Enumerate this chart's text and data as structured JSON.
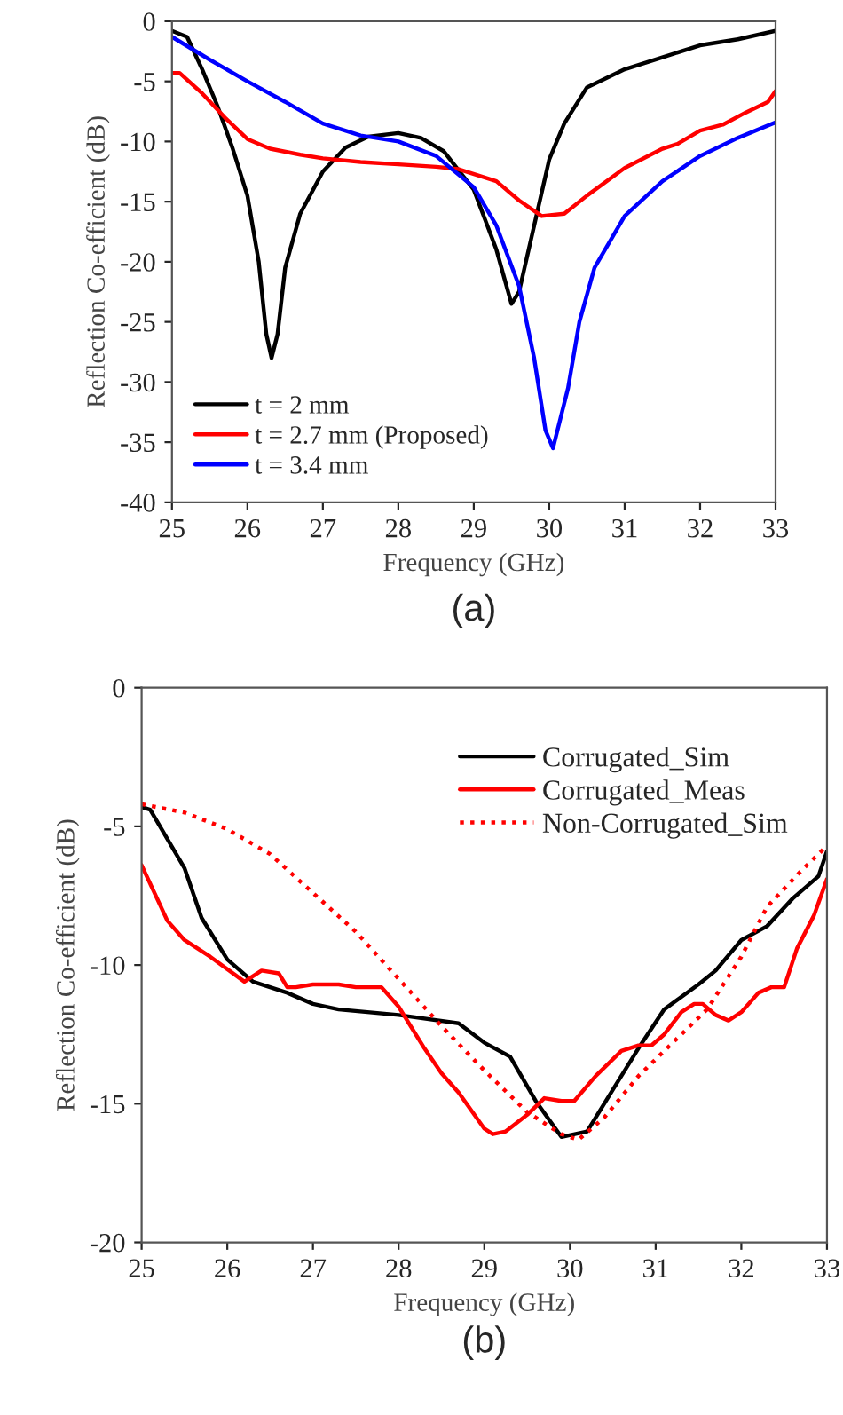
{
  "chart_data": [
    {
      "type": "line",
      "xlabel": "Frequency (GHz)",
      "ylabel": "Reflection Co-efficient (dB)",
      "annotations": [
        "(a)"
      ],
      "xlim": [
        25,
        33
      ],
      "ylim": [
        -40,
        0
      ],
      "xticks": [
        25,
        26,
        27,
        28,
        29,
        30,
        31,
        32,
        33
      ],
      "yticks": [
        -40,
        -35,
        -30,
        -25,
        -20,
        -15,
        -10,
        -5,
        0
      ],
      "grid": false,
      "legend": "bottom left",
      "series": [
        {
          "name": "t = 2 mm",
          "color": "#000000",
          "x": [
            25,
            25.2,
            25.4,
            25.6,
            25.8,
            26,
            26.15,
            26.25,
            26.32,
            26.4,
            26.5,
            26.7,
            27,
            27.3,
            27.6,
            28,
            28.3,
            28.6,
            29,
            29.3,
            29.5,
            29.6,
            29.8,
            30,
            30.2,
            30.5,
            31,
            31.5,
            32,
            32.5,
            33
          ],
          "values": [
            -0.8,
            -1.3,
            -4,
            -7,
            -10.5,
            -14.5,
            -20,
            -26,
            -28,
            -26,
            -20.5,
            -16,
            -12.5,
            -10.5,
            -9.6,
            -9.3,
            -9.7,
            -10.8,
            -14,
            -19,
            -23.5,
            -22.5,
            -17,
            -11.5,
            -8.5,
            -5.5,
            -4,
            -3,
            -2,
            -1.5,
            -0.8
          ]
        },
        {
          "name": "t = 2.7 mm (Proposed)",
          "color": "#ff0000",
          "x": [
            25,
            25.1,
            25.4,
            25.7,
            26,
            26.3,
            26.7,
            27,
            27.5,
            28,
            28.5,
            28.8,
            29.3,
            29.6,
            29.9,
            30.2,
            30.5,
            31,
            31.5,
            31.7,
            32,
            32.3,
            32.6,
            32.9,
            33
          ],
          "values": [
            -4.3,
            -4.3,
            -6,
            -8,
            -9.8,
            -10.6,
            -11.1,
            -11.4,
            -11.7,
            -11.9,
            -12.1,
            -12.3,
            -13.3,
            -14.9,
            -16.2,
            -16,
            -14.5,
            -12.2,
            -10.6,
            -10.2,
            -9.1,
            -8.6,
            -7.6,
            -6.7,
            -5.8
          ]
        },
        {
          "name": "t = 3.4 mm",
          "color": "#0000ff",
          "x": [
            25,
            25.5,
            26,
            26.5,
            27,
            27.5,
            28,
            28.5,
            29,
            29.3,
            29.6,
            29.8,
            29.95,
            30.05,
            30.15,
            30.25,
            30.4,
            30.6,
            31,
            31.5,
            32,
            32.5,
            33
          ],
          "values": [
            -1.3,
            -3.2,
            -5,
            -6.7,
            -8.5,
            -9.5,
            -10,
            -11.2,
            -13.8,
            -17,
            -22,
            -28,
            -34,
            -35.5,
            -33,
            -30.5,
            -25,
            -20.5,
            -16.2,
            -13.3,
            -11.2,
            -9.7,
            -8.4
          ]
        }
      ]
    },
    {
      "type": "line",
      "xlabel": "Frequency (GHz)",
      "ylabel": "Reflection Co-efficient (dB)",
      "annotations": [
        "(b)"
      ],
      "xlim": [
        25,
        33
      ],
      "ylim": [
        -20,
        0
      ],
      "xticks": [
        25,
        26,
        27,
        28,
        29,
        30,
        31,
        32,
        33
      ],
      "yticks": [
        -20,
        -15,
        -10,
        -5,
        0
      ],
      "grid": false,
      "legend": "top right",
      "series": [
        {
          "name": "Corrugated_Sim",
          "color": "#000000",
          "line_style": "solid",
          "x": [
            25,
            25.1,
            25.5,
            25.7,
            26,
            26.3,
            26.7,
            27,
            27.3,
            28,
            28.7,
            29,
            29.3,
            29.6,
            29.9,
            30.2,
            30.5,
            30.8,
            31.1,
            31.5,
            31.7,
            32,
            32.3,
            32.6,
            32.9,
            33
          ],
          "values": [
            -4.3,
            -4.4,
            -6.5,
            -8.3,
            -9.8,
            -10.6,
            -11,
            -11.4,
            -11.6,
            -11.8,
            -12.1,
            -12.8,
            -13.3,
            -14.9,
            -16.2,
            -16,
            -14.5,
            -13,
            -11.6,
            -10.7,
            -10.2,
            -9.1,
            -8.6,
            -7.6,
            -6.8,
            -5.9
          ]
        },
        {
          "name": "Corrugated_Meas",
          "color": "#ff0000",
          "line_style": "solid",
          "x": [
            25,
            25.3,
            25.5,
            25.8,
            26.2,
            26.4,
            26.6,
            26.7,
            26.8,
            27,
            27.3,
            27.5,
            27.8,
            28,
            28.3,
            28.5,
            28.7,
            29,
            29.1,
            29.25,
            29.5,
            29.7,
            29.9,
            30.05,
            30.3,
            30.6,
            30.8,
            30.95,
            31.1,
            31.3,
            31.45,
            31.55,
            31.7,
            31.85,
            32,
            32.2,
            32.35,
            32.5,
            32.65,
            32.85,
            33
          ],
          "values": [
            -6.4,
            -8.4,
            -9.1,
            -9.7,
            -10.6,
            -10.2,
            -10.3,
            -10.8,
            -10.8,
            -10.7,
            -10.7,
            -10.8,
            -10.8,
            -11.5,
            -13,
            -13.9,
            -14.6,
            -15.9,
            -16.1,
            -16,
            -15.4,
            -14.8,
            -14.9,
            -14.9,
            -14,
            -13.1,
            -12.9,
            -12.9,
            -12.5,
            -11.7,
            -11.4,
            -11.4,
            -11.8,
            -12,
            -11.7,
            -11,
            -10.8,
            -10.8,
            -9.4,
            -8.2,
            -6.9
          ]
        },
        {
          "name": "Non-Corrugated_Sim",
          "color": "#ff0000",
          "line_style": "dotted",
          "x": [
            25,
            25.5,
            26,
            26.5,
            27,
            27.5,
            28,
            28.5,
            29,
            29.5,
            29.9,
            30.1,
            30.4,
            30.8,
            31.2,
            31.6,
            32,
            32.3,
            32.7,
            33
          ],
          "values": [
            -4.2,
            -4.5,
            -5.1,
            -6,
            -7.4,
            -8.8,
            -10.5,
            -12.2,
            -13.8,
            -15.3,
            -16.1,
            -16.3,
            -15.5,
            -14,
            -12.8,
            -11.6,
            -9.7,
            -7.9,
            -6.6,
            -5.7
          ]
        }
      ]
    }
  ]
}
